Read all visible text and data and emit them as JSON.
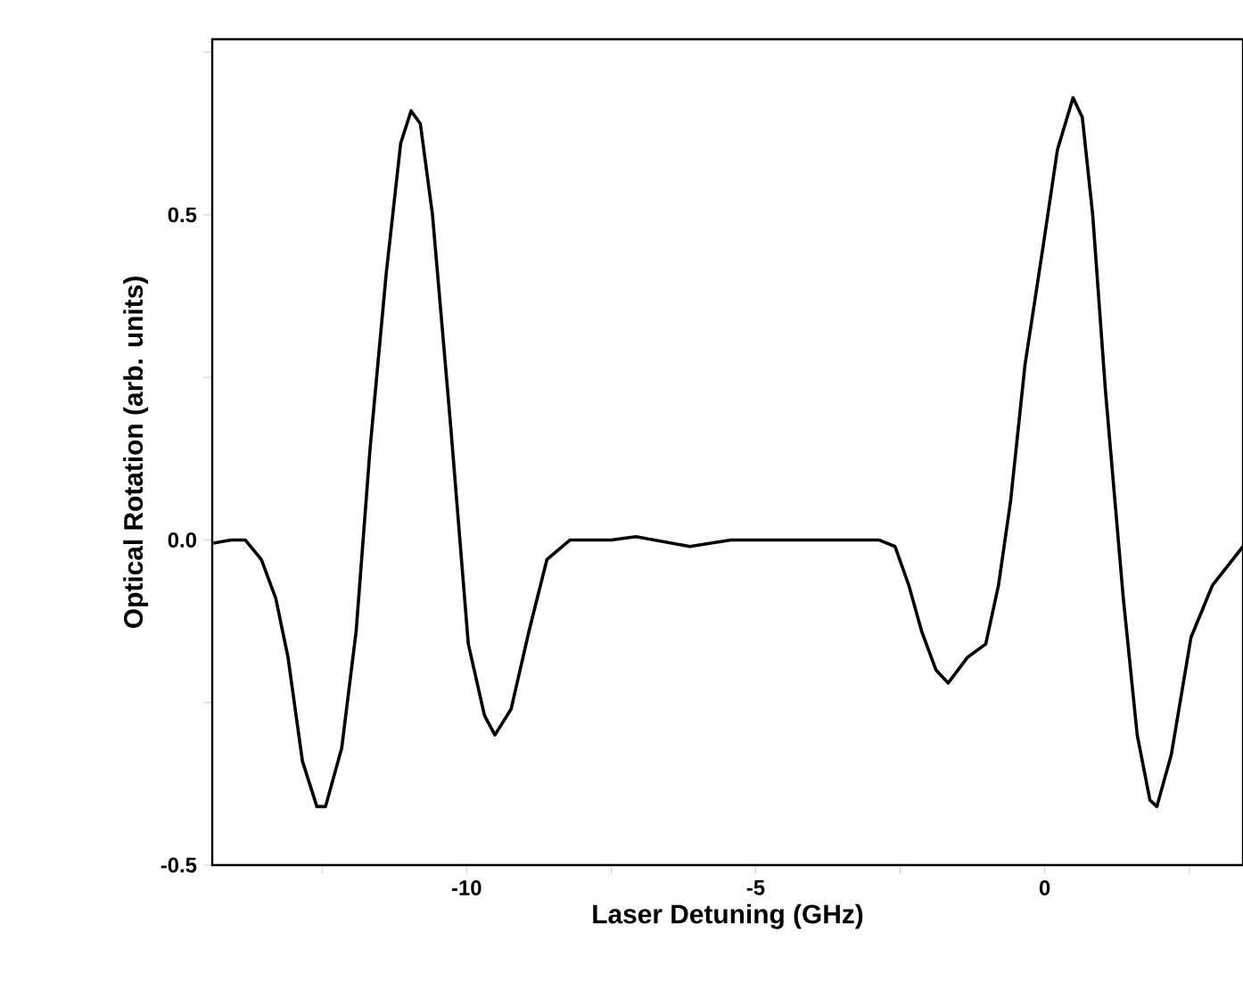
{
  "chart_data": {
    "type": "line",
    "xlabel": "Laser Detuning (GHz)",
    "ylabel": "Optical Rotation (arb. units)",
    "xlim": [
      -14.4,
      3.43
    ],
    "ylim": [
      -0.5,
      0.77
    ],
    "xticks": [
      {
        "value": -12.5,
        "label": null
      },
      {
        "value": -10,
        "label": "-10"
      },
      {
        "value": -7.5,
        "label": null
      },
      {
        "value": -5,
        "label": "-5"
      },
      {
        "value": -2.5,
        "label": null
      },
      {
        "value": 0,
        "label": "0"
      },
      {
        "value": 2.5,
        "label": null
      }
    ],
    "yticks": [
      {
        "value": -0.5,
        "label": "-0.5"
      },
      {
        "value": -0.25,
        "label": null
      },
      {
        "value": 0,
        "label": "0.0"
      },
      {
        "value": 0.25,
        "label": null
      },
      {
        "value": 0.5,
        "label": "0.5"
      },
      {
        "value": 0.75,
        "label": null
      }
    ],
    "series": [
      {
        "color": "#000000",
        "x": [
          -14.38,
          -14.07,
          -13.83,
          -13.55,
          -13.3,
          -13.09,
          -12.84,
          -12.59,
          -12.44,
          -12.16,
          -11.91,
          -11.67,
          -11.39,
          -11.14,
          -10.96,
          -10.8,
          -10.59,
          -10.28,
          -9.97,
          -9.69,
          -9.51,
          -9.23,
          -8.92,
          -8.61,
          -8.21,
          -7.5,
          -7.07,
          -6.14,
          -5.43,
          -4.2,
          -2.87,
          -2.59,
          -2.35,
          -2.13,
          -1.88,
          -1.67,
          -1.33,
          -1.02,
          -0.8,
          -0.59,
          -0.34,
          -0.03,
          0.22,
          0.49,
          0.65,
          0.83,
          1.05,
          1.36,
          1.6,
          1.82,
          1.94,
          2.19,
          2.53,
          2.9,
          3.43
        ],
        "values": [
          -0.005,
          0.0,
          0.0,
          -0.03,
          -0.09,
          -0.18,
          -0.34,
          -0.41,
          -0.41,
          -0.32,
          -0.14,
          0.14,
          0.41,
          0.61,
          0.66,
          0.64,
          0.5,
          0.18,
          -0.16,
          -0.27,
          -0.3,
          -0.26,
          -0.14,
          -0.03,
          0.0,
          0.0,
          0.005,
          -0.01,
          0.0,
          0.0,
          0.0,
          -0.01,
          -0.07,
          -0.14,
          -0.2,
          -0.22,
          -0.18,
          -0.16,
          -0.07,
          0.06,
          0.27,
          0.45,
          0.6,
          0.68,
          0.65,
          0.5,
          0.23,
          -0.09,
          -0.3,
          -0.4,
          -0.41,
          -0.33,
          -0.15,
          -0.07,
          -0.01
        ]
      }
    ]
  }
}
